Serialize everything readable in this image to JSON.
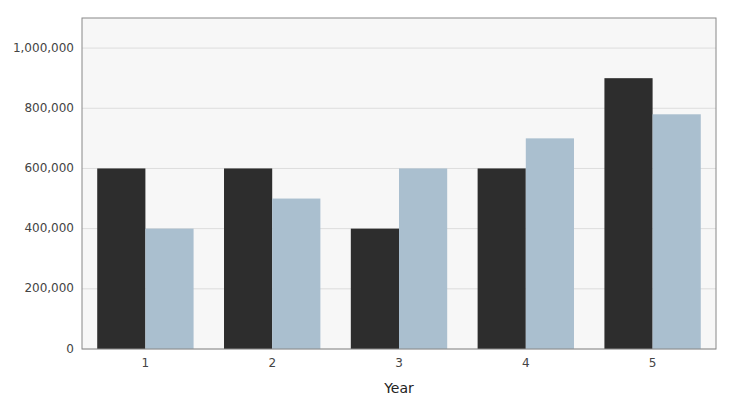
{
  "chart_data": {
    "type": "bar",
    "xlabel": "Year",
    "categories": [
      "1",
      "2",
      "3",
      "4",
      "5"
    ],
    "series": [
      {
        "color": "#2d2d2d",
        "values": [
          600000,
          600000,
          400000,
          600000,
          900000
        ]
      },
      {
        "color": "#aabfcf",
        "values": [
          400000,
          500000,
          600000,
          700000,
          780000
        ]
      }
    ],
    "ylim": [
      0,
      1100000
    ],
    "yticks": [
      0,
      {
        "value": 200000,
        "label": "200,000"
      },
      {
        "value": 400000,
        "label": "400,000"
      },
      {
        "value": 600000,
        "label": "600,000"
      },
      {
        "value": 800000,
        "label": "800,000"
      },
      {
        "value": 1000000,
        "label": "1,000,000"
      }
    ],
    "grid": true
  }
}
